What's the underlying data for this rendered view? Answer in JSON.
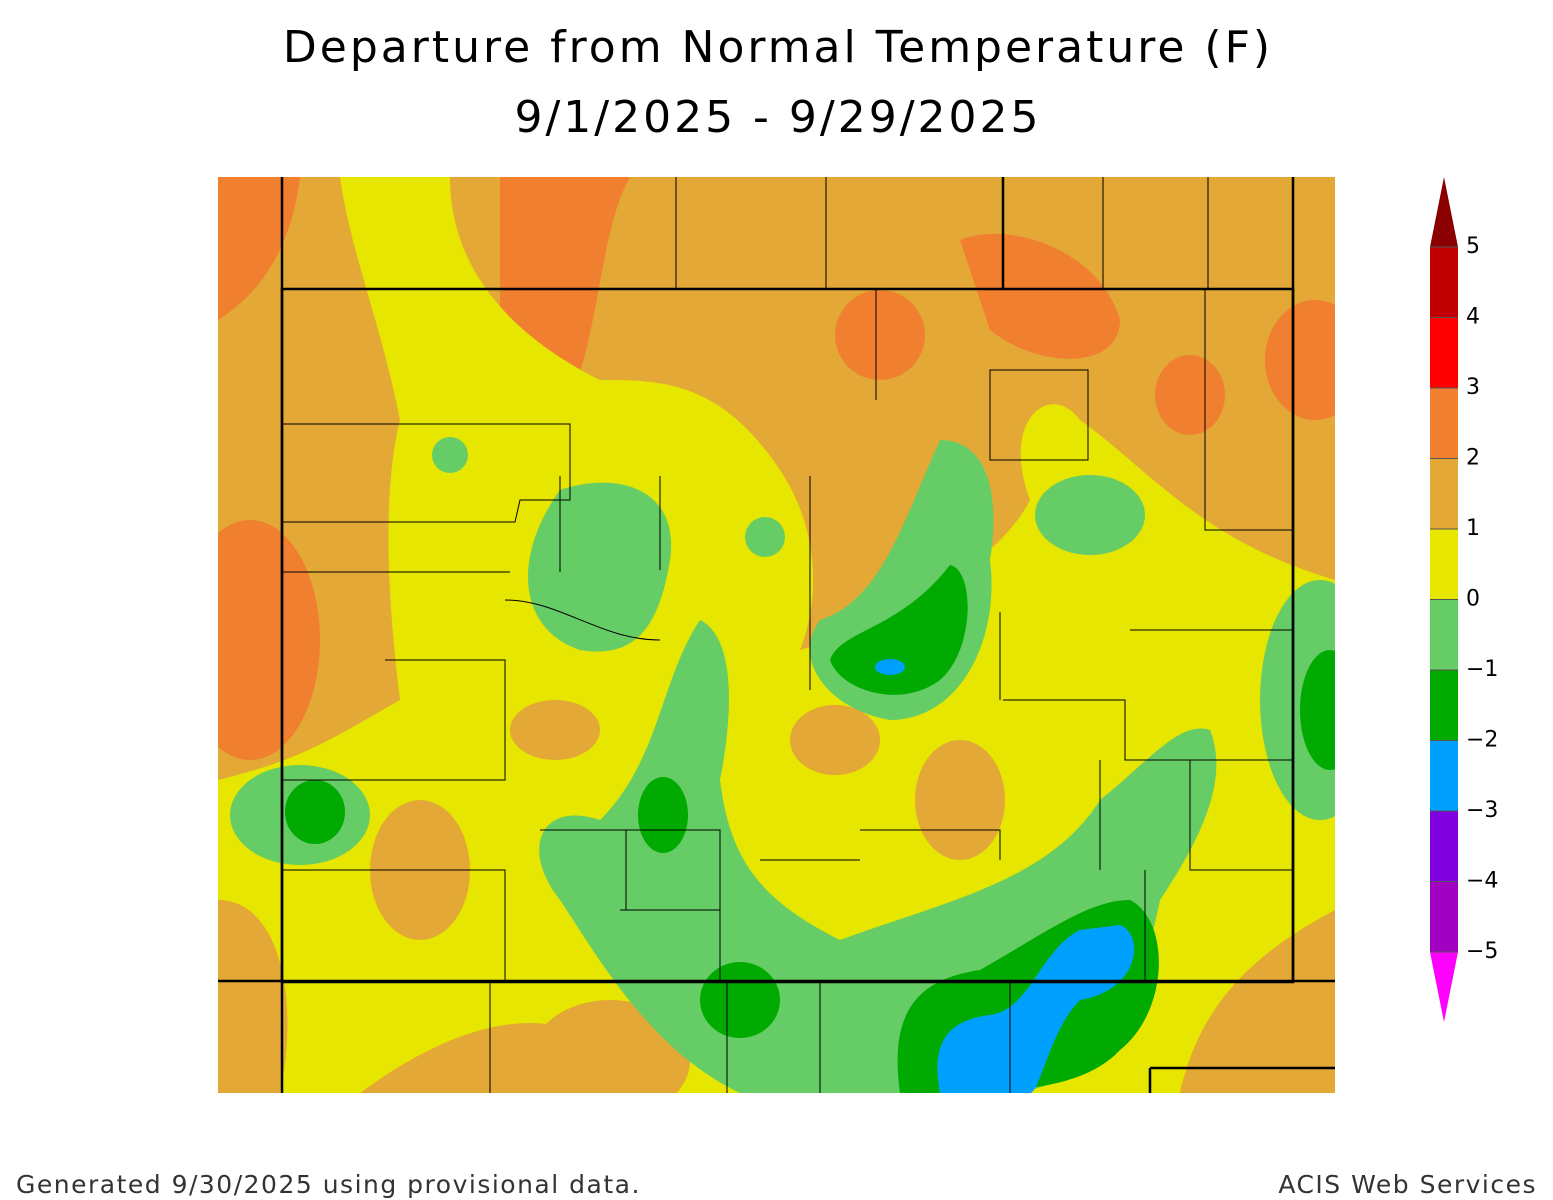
{
  "header": {
    "title": "Departure from Normal Temperature (F)",
    "subtitle": "9/1/2025 - 9/29/2025"
  },
  "legend": {
    "levels": [
      5,
      4,
      3,
      2,
      1,
      0,
      {
        "value": -1,
        "label": "−1"
      },
      {
        "value": -2,
        "label": "−2"
      },
      {
        "value": -3,
        "label": "−3"
      },
      {
        "value": -4,
        "label": "−4"
      },
      {
        "value": -5,
        "label": "−5"
      }
    ],
    "colors": [
      "#8b0000",
      "#c00000",
      "#ff0000",
      "#f08030",
      "#e3a835",
      "#e6e600",
      "#66cc66",
      "#00aa00",
      "#00a0ff",
      "#8000e0",
      "#a000c0",
      "#ff00ff"
    ]
  },
  "footer": {
    "left": "Generated 9/30/2025 using provisional data.",
    "right": "ACIS Web Services"
  }
}
